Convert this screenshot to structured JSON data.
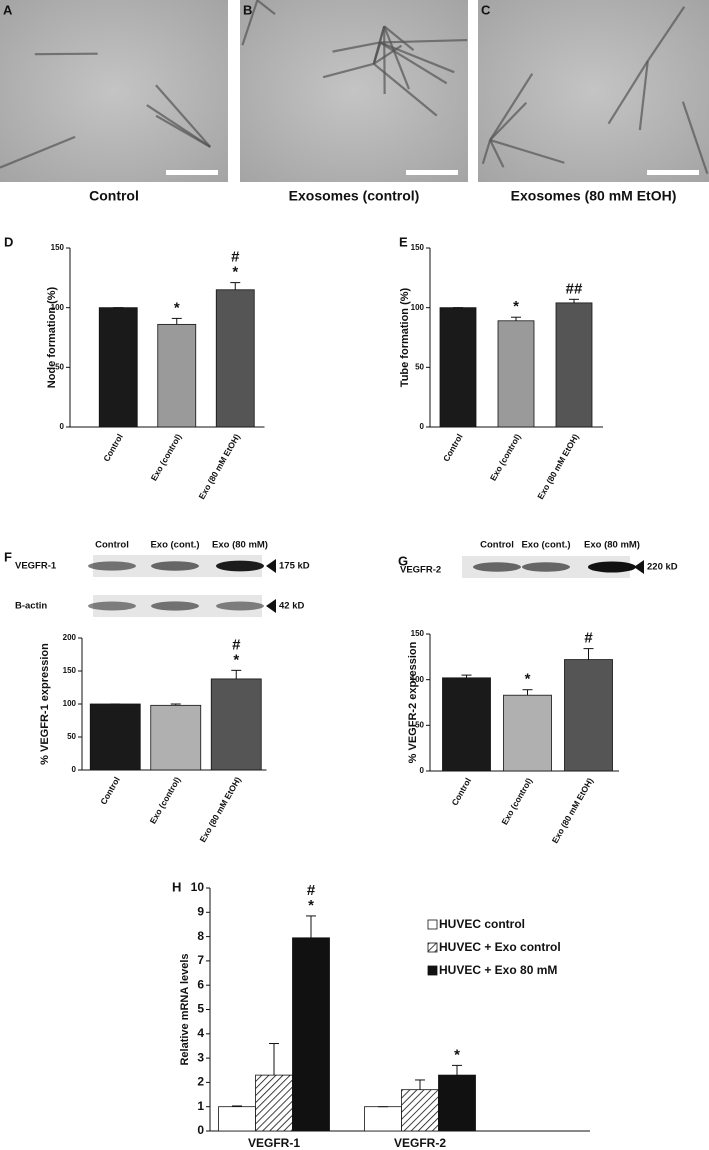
{
  "images": [
    {
      "label": "A",
      "caption": "Control"
    },
    {
      "label": "B",
      "caption": "Exosomes (control)"
    },
    {
      "label": "C",
      "caption": "Exosomes (80 mM EtOH)"
    }
  ],
  "blots": [
    {
      "lanes": [
        "Control",
        "Exo (cont.)",
        "Exo (80 mM)"
      ],
      "rows": [
        {
          "name": "VEGFR-1",
          "size": "175 kD"
        },
        {
          "name": "B-actin",
          "size": "42 kD"
        }
      ]
    },
    {
      "lanes": [
        "Control",
        "Exo (cont.)",
        "Exo (80 mM)"
      ],
      "rows": [
        {
          "name": "VEGFR-2",
          "size": "220 kD"
        }
      ]
    }
  ],
  "chart_data": [
    {
      "type": "bar",
      "label": "D",
      "y_label": "Node formation (%)",
      "categories": [
        "Control",
        "Exo (control)",
        "Exo (80 mM EtOH)"
      ],
      "series": [
        {
          "values": [
            100,
            86,
            115
          ],
          "errors": [
            0,
            5,
            6
          ],
          "colors": [
            "#1a1a1a",
            "#9a9a9a",
            "#555555"
          ]
        }
      ],
      "ylim": [
        0,
        150
      ],
      "yticks": [
        0,
        50,
        100,
        150
      ],
      "annotations": [
        {
          "category": "Exo (control)",
          "text": [
            "*"
          ]
        },
        {
          "category": "Exo (80 mM EtOH)",
          "text": [
            "#",
            "*"
          ]
        }
      ]
    },
    {
      "type": "bar",
      "label": "E",
      "y_label": "Tube formation (%)",
      "categories": [
        "Control",
        "Exo (control)",
        "Exo (80 mM EtOH)"
      ],
      "series": [
        {
          "values": [
            100,
            89,
            104
          ],
          "errors": [
            0,
            3,
            3
          ],
          "colors": [
            "#1a1a1a",
            "#9a9a9a",
            "#555555"
          ]
        }
      ],
      "ylim": [
        0,
        150
      ],
      "yticks": [
        0,
        50,
        100,
        150
      ],
      "annotations": [
        {
          "category": "Exo (control)",
          "text": [
            "*"
          ]
        },
        {
          "category": "Exo (80 mM EtOH)",
          "text": [
            "##"
          ]
        }
      ]
    },
    {
      "type": "bar",
      "label": "F",
      "y_label": "% VEGFR-1 expression",
      "categories": [
        "Control",
        "Exo (control)",
        "Exo (80 mM EtOH)"
      ],
      "series": [
        {
          "values": [
            100,
            98,
            138
          ],
          "errors": [
            0,
            2,
            13
          ],
          "colors": [
            "#1a1a1a",
            "#b0b0b0",
            "#555555"
          ]
        }
      ],
      "ylim": [
        0,
        200
      ],
      "yticks": [
        0,
        50,
        100,
        150,
        200
      ],
      "annotations": [
        {
          "category": "Exo (80 mM EtOH)",
          "text": [
            "#",
            "*"
          ]
        }
      ]
    },
    {
      "type": "bar",
      "label": "G",
      "y_label": "% VEGFR-2 expression",
      "categories": [
        "Control",
        "Exo (control)",
        "Exo (80 mM EtOH)"
      ],
      "series": [
        {
          "values": [
            102,
            83,
            122
          ],
          "errors": [
            3,
            6,
            12
          ],
          "colors": [
            "#1a1a1a",
            "#b0b0b0",
            "#555555"
          ]
        }
      ],
      "ylim": [
        0,
        150
      ],
      "yticks": [
        0,
        50,
        100,
        150
      ],
      "annotations": [
        {
          "category": "Exo (control)",
          "text": [
            "*"
          ]
        },
        {
          "category": "Exo (80 mM EtOH)",
          "text": [
            "#"
          ]
        }
      ]
    },
    {
      "type": "grouped_bar",
      "label": "H",
      "y_label": "Relative mRNA levels",
      "categories": [
        "VEGFR-1",
        "VEGFR-2"
      ],
      "series": [
        {
          "name": "HUVEC control",
          "color": "#ffffff",
          "values": [
            1.0,
            1.0
          ],
          "errors": [
            0.03,
            0
          ]
        },
        {
          "name": "HUVEC + Exo control",
          "color": "#ffffff",
          "hatch": true,
          "values": [
            2.3,
            1.7
          ],
          "errors": [
            1.3,
            0.4
          ]
        },
        {
          "name": "HUVEC + Exo 80 mM",
          "color": "#111111",
          "values": [
            7.95,
            2.3
          ],
          "errors": [
            0.9,
            0.4
          ]
        }
      ],
      "ylim": [
        0,
        10
      ],
      "yticks": [
        0,
        1,
        2,
        3,
        4,
        5,
        6,
        7,
        8,
        9,
        10
      ],
      "annotations": [
        {
          "category": "VEGFR-1",
          "series": "HUVEC + Exo 80 mM",
          "text": [
            "#",
            "*"
          ]
        },
        {
          "category": "VEGFR-2",
          "series": "HUVEC + Exo 80 mM",
          "text": [
            "*"
          ]
        }
      ]
    }
  ]
}
